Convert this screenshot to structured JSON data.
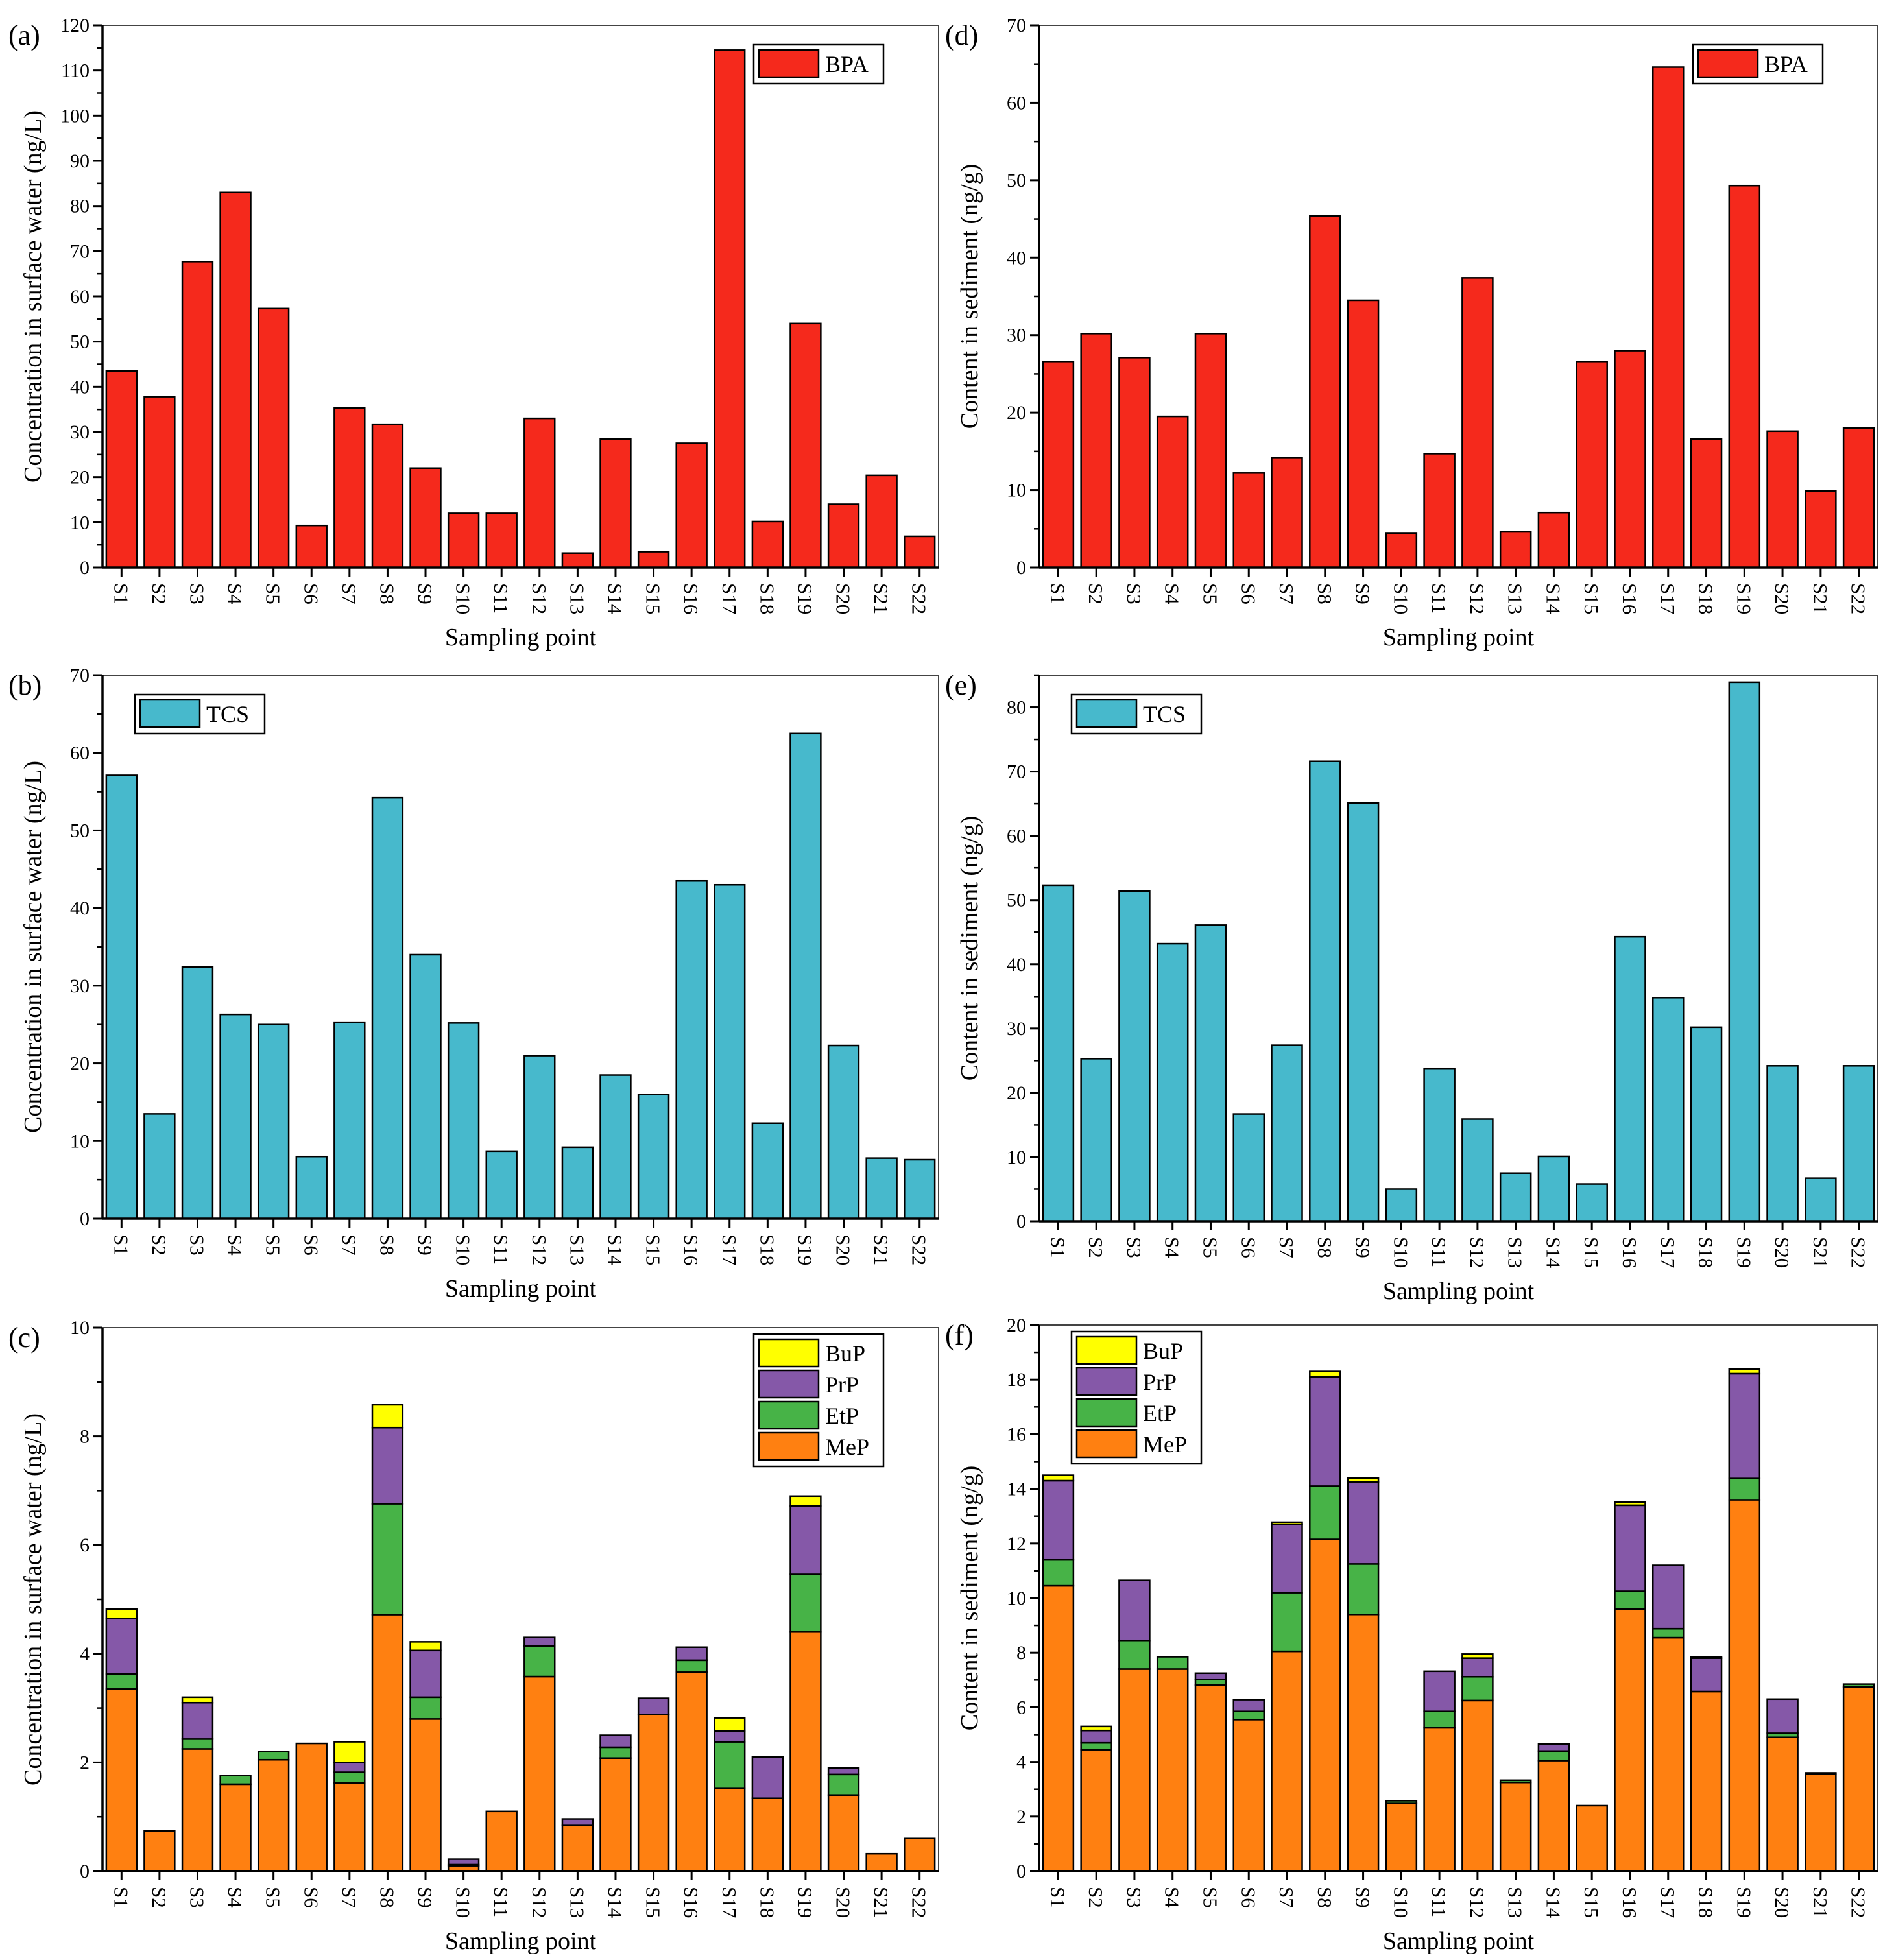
{
  "chart_data": [
    {
      "panel": "(a)",
      "type": "bar",
      "categories": [
        "S1",
        "S2",
        "S3",
        "S4",
        "S5",
        "S6",
        "S7",
        "S8",
        "S9",
        "S10",
        "S11",
        "S12",
        "S13",
        "S14",
        "S15",
        "S16",
        "S17",
        "S18",
        "S19",
        "S20",
        "S21",
        "S22"
      ],
      "series": [
        {
          "name": "BPA",
          "color": "#F5291C",
          "values": [
            43.5,
            37.8,
            67.7,
            83.0,
            57.3,
            9.3,
            35.3,
            31.7,
            22.0,
            12.0,
            12.0,
            33.0,
            3.2,
            28.4,
            3.5,
            27.5,
            114.5,
            10.2,
            54.0,
            14.0,
            20.4,
            6.9
          ]
        }
      ],
      "xlabel": "Sampling point",
      "ylabel": "Concentration in surface water (ng/L)",
      "ylim": [
        0,
        120
      ],
      "yticks": [
        0,
        10,
        20,
        30,
        40,
        50,
        60,
        70,
        80,
        90,
        100,
        110,
        120
      ],
      "legend": "top-right",
      "grid": false
    },
    {
      "panel": "(d)",
      "type": "bar",
      "categories": [
        "S1",
        "S2",
        "S3",
        "S4",
        "S5",
        "S6",
        "S7",
        "S8",
        "S9",
        "S10",
        "S11",
        "S12",
        "S13",
        "S14",
        "S15",
        "S16",
        "S17",
        "S18",
        "S19",
        "S20",
        "S21",
        "S22"
      ],
      "series": [
        {
          "name": "BPA",
          "color": "#F5291C",
          "values": [
            26.6,
            30.2,
            27.1,
            19.5,
            30.2,
            12.2,
            14.2,
            45.4,
            34.5,
            4.4,
            14.7,
            37.4,
            4.6,
            7.1,
            26.6,
            28.0,
            64.6,
            16.6,
            49.3,
            17.6,
            9.9,
            18.0
          ]
        }
      ],
      "xlabel": "Sampling point",
      "ylabel": "Content in sediment (ng/g)",
      "ylim": [
        0,
        70
      ],
      "yticks": [
        0,
        10,
        20,
        30,
        40,
        50,
        60,
        70
      ],
      "legend": "top-right",
      "grid": false
    },
    {
      "panel": "(b)",
      "type": "bar",
      "categories": [
        "S1",
        "S2",
        "S3",
        "S4",
        "S5",
        "S6",
        "S7",
        "S8",
        "S9",
        "S10",
        "S11",
        "S12",
        "S13",
        "S14",
        "S15",
        "S16",
        "S17",
        "S18",
        "S19",
        "S20",
        "S21",
        "S22"
      ],
      "series": [
        {
          "name": "TCS",
          "color": "#47B9CC",
          "values": [
            57.1,
            13.5,
            32.4,
            26.3,
            25.0,
            8.0,
            25.3,
            54.2,
            34.0,
            25.2,
            8.7,
            21.0,
            9.2,
            18.5,
            16.0,
            43.5,
            43.0,
            12.3,
            62.5,
            22.3,
            7.8,
            7.6
          ]
        }
      ],
      "xlabel": "Sampling point",
      "ylabel": "Concentration in surface water (ng/L)",
      "ylim": [
        0,
        70
      ],
      "yticks": [
        0,
        10,
        20,
        30,
        40,
        50,
        60,
        70
      ],
      "legend": "top-left",
      "grid": false
    },
    {
      "panel": "(e)",
      "type": "bar",
      "categories": [
        "S1",
        "S2",
        "S3",
        "S4",
        "S5",
        "S6",
        "S7",
        "S8",
        "S9",
        "S10",
        "S11",
        "S12",
        "S13",
        "S14",
        "S15",
        "S16",
        "S17",
        "S18",
        "S19",
        "S20",
        "S21",
        "S22"
      ],
      "series": [
        {
          "name": "TCS",
          "color": "#47B9CC",
          "values": [
            52.3,
            25.3,
            51.4,
            43.2,
            46.1,
            16.7,
            27.4,
            71.6,
            65.1,
            5.0,
            23.8,
            15.9,
            7.5,
            10.1,
            5.8,
            44.3,
            34.8,
            30.2,
            83.9,
            24.2,
            6.7,
            24.2
          ]
        }
      ],
      "xlabel": "Sampling point",
      "ylabel": "Content in sediment (ng/g)",
      "ylim": [
        0,
        85
      ],
      "yticks": [
        0,
        10,
        20,
        30,
        40,
        50,
        60,
        70,
        80
      ],
      "legend": "top-left",
      "grid": false
    },
    {
      "panel": "(c)",
      "type": "bar",
      "stacked": true,
      "categories": [
        "S1",
        "S2",
        "S3",
        "S4",
        "S5",
        "S6",
        "S7",
        "S8",
        "S9",
        "S10",
        "S11",
        "S12",
        "S13",
        "S14",
        "S15",
        "S16",
        "S17",
        "S18",
        "S19",
        "S20",
        "S21",
        "S22"
      ],
      "series": [
        {
          "name": "MeP",
          "color": "#FF8011",
          "values": [
            3.35,
            0.74,
            2.25,
            1.6,
            2.05,
            2.35,
            1.62,
            4.72,
            2.8,
            0.1,
            1.1,
            3.58,
            0.84,
            2.08,
            2.88,
            3.66,
            1.52,
            1.34,
            4.4,
            1.4,
            0.32,
            0.6
          ]
        },
        {
          "name": "EtP",
          "color": "#47B347",
          "values": [
            0.28,
            0,
            0.18,
            0.16,
            0.15,
            0,
            0.2,
            2.04,
            0.4,
            0.02,
            0,
            0.56,
            0,
            0.2,
            0,
            0.22,
            0.86,
            0,
            1.06,
            0.38,
            0,
            0
          ]
        },
        {
          "name": "PrP",
          "color": "#8558A8",
          "values": [
            1.02,
            0,
            0.67,
            0,
            0,
            0,
            0.18,
            1.4,
            0.86,
            0.1,
            0,
            0.16,
            0.12,
            0.22,
            0.3,
            0.24,
            0.2,
            0.76,
            1.26,
            0.12,
            0,
            0
          ]
        },
        {
          "name": "BuP",
          "color": "#FFFF00",
          "values": [
            0.17,
            0,
            0.1,
            0,
            0,
            0,
            0.38,
            0.42,
            0.16,
            0,
            0,
            0,
            0,
            0,
            0,
            0,
            0.24,
            0,
            0.18,
            0,
            0,
            0
          ]
        }
      ],
      "xlabel": "Sampling point",
      "ylabel": "Concentration in surface water (ng/L)",
      "ylim": [
        0,
        10
      ],
      "yticks": [
        0,
        2,
        4,
        6,
        8,
        10
      ],
      "legend": "top-right",
      "grid": false
    },
    {
      "panel": "(f)",
      "type": "bar",
      "stacked": true,
      "categories": [
        "S1",
        "S2",
        "S3",
        "S4",
        "S5",
        "S6",
        "S7",
        "S8",
        "S9",
        "S10",
        "S11",
        "S12",
        "S13",
        "S14",
        "S15",
        "S16",
        "S17",
        "S18",
        "S19",
        "S20",
        "S21",
        "S22"
      ],
      "series": [
        {
          "name": "MeP",
          "color": "#FF8011",
          "values": [
            10.45,
            4.45,
            7.4,
            7.4,
            6.82,
            5.55,
            8.05,
            12.15,
            9.4,
            2.48,
            5.25,
            6.25,
            3.25,
            4.05,
            2.4,
            9.6,
            8.55,
            6.58,
            13.6,
            4.9,
            3.55,
            6.75
          ]
        },
        {
          "name": "EtP",
          "color": "#47B347",
          "values": [
            0.95,
            0.25,
            1.05,
            0.45,
            0.2,
            0.3,
            2.15,
            1.95,
            1.85,
            0.1,
            0.6,
            0.87,
            0.08,
            0.35,
            0,
            0.65,
            0.33,
            0,
            0.78,
            0.15,
            0.05,
            0.1
          ]
        },
        {
          "name": "PrP",
          "color": "#8558A8",
          "values": [
            2.9,
            0.45,
            2.2,
            0,
            0.23,
            0.43,
            2.5,
            4.0,
            3.0,
            0,
            1.47,
            0.68,
            0,
            0.25,
            0,
            3.15,
            2.32,
            1.22,
            3.84,
            1.25,
            0,
            0
          ]
        },
        {
          "name": "BuP",
          "color": "#FFFF00",
          "values": [
            0.2,
            0.15,
            0,
            0,
            0,
            0,
            0.08,
            0.2,
            0.15,
            0,
            0,
            0.15,
            0,
            0,
            0,
            0.12,
            0,
            0.05,
            0.16,
            0,
            0,
            0
          ]
        }
      ],
      "xlabel": "Sampling point",
      "ylabel": "Content in sediment (ng/g)",
      "ylim": [
        0,
        20
      ],
      "yticks": [
        0,
        2,
        4,
        6,
        8,
        10,
        12,
        14,
        16,
        18,
        20
      ],
      "legend": "top-left",
      "grid": false
    }
  ]
}
